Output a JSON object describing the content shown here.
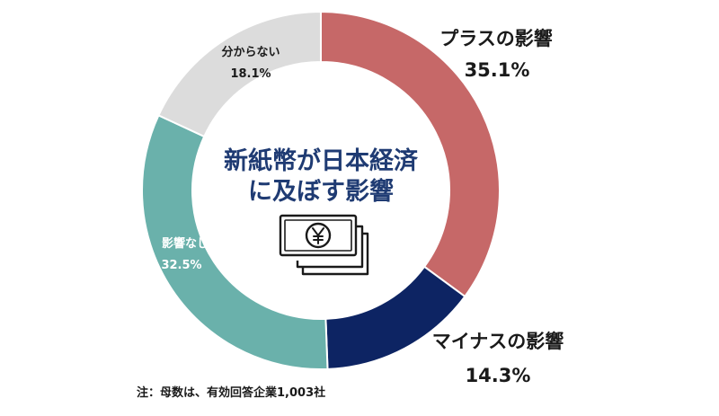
{
  "chart_data": {
    "type": "pie",
    "variant": "donut",
    "title_lines": [
      "新紙幣が日本経済",
      "に及ぼす影響"
    ],
    "slices": [
      {
        "label": "プラスの影響",
        "value": 35.1,
        "value_label": "35.1%",
        "color": "#c66868"
      },
      {
        "label": "マイナスの影響",
        "value": 14.3,
        "value_label": "14.3%",
        "color": "#0d2463"
      },
      {
        "label": "影響なし",
        "value": 32.5,
        "value_label": "32.5%",
        "color": "#6ab1ab"
      },
      {
        "label": "分からない",
        "value": 18.1,
        "value_label": "18.1%",
        "color": "#dcdcdc"
      }
    ],
    "start": "top",
    "direction": "clockwise",
    "legend": "none"
  },
  "icon": "yen-banknotes-icon",
  "note": "注：母数は、有効回答企業1,003社"
}
